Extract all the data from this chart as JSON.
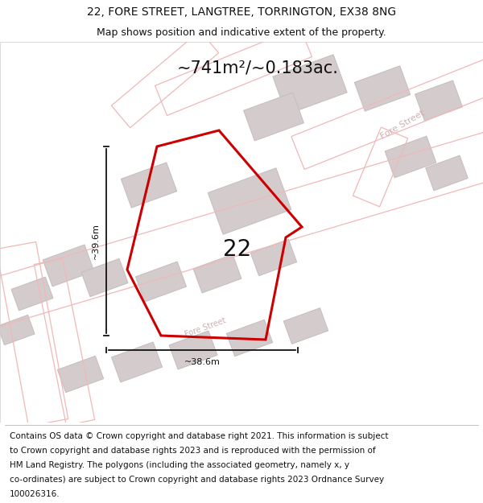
{
  "title_line1": "22, FORE STREET, LANGTREE, TORRINGTON, EX38 8NG",
  "title_line2": "Map shows position and indicative extent of the property.",
  "area_label": "~741m²/~0.183ac.",
  "width_label": "~38.6m",
  "height_label": "~39.6m",
  "number_label": "22",
  "footer_lines": [
    "Contains OS data © Crown copyright and database right 2021. This information is subject",
    "to Crown copyright and database rights 2023 and is reproduced with the permission of",
    "HM Land Registry. The polygons (including the associated geometry, namely x, y",
    "co-ordinates) are subject to Crown copyright and database rights 2023 Ordnance Survey",
    "100026316."
  ],
  "bg_color": "#ffffff",
  "map_bg": "#f9f6f6",
  "road_line_color": "#f0b8b8",
  "building_fill": "#d4cccc",
  "building_edge": "#c8c0c0",
  "plot_color": "#cc0000",
  "arrow_color": "#111111",
  "text_color": "#111111",
  "road_label_color": "#c8a8a8",
  "title_fs": 10,
  "subtitle_fs": 9,
  "area_fs": 15,
  "number_fs": 20,
  "dim_fs": 8,
  "footer_fs": 7.5,
  "road_label_fs": 7
}
